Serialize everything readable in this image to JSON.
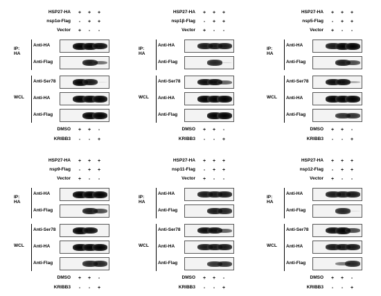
{
  "panels": [
    {
      "header": [
        {
          "label": "HSP27-HA",
          "marks": [
            "+",
            "+",
            "+"
          ]
        },
        {
          "label": "nsp1α-Flag",
          "marks": [
            "-",
            "+",
            "+"
          ]
        },
        {
          "label": "Vector",
          "marks": [
            "+",
            "-",
            "-"
          ]
        }
      ],
      "ip_group": "IP:\nHA",
      "wcl_group": "WCL",
      "rows": [
        {
          "label": "Anti-HA",
          "bands": [
            1,
            1,
            0.95
          ]
        },
        {
          "label": "Anti-Flag",
          "bands": [
            0,
            0.9,
            0.55
          ]
        },
        {
          "label": "Anti-Ser78",
          "bands": [
            1,
            0.9,
            0.1
          ]
        },
        {
          "label": "Anti-HA",
          "bands": [
            1,
            1,
            1
          ]
        },
        {
          "label": "Anti-Flag",
          "bands": [
            0,
            1,
            1
          ]
        }
      ],
      "footer": [
        {
          "label": "DMSO",
          "marks": [
            "+",
            "+",
            "-"
          ]
        },
        {
          "label": "KRIBB3",
          "marks": [
            "-",
            "-",
            "+"
          ]
        }
      ]
    },
    {
      "header": [
        {
          "label": "HSP27-HA",
          "marks": [
            "+",
            "+",
            "+"
          ]
        },
        {
          "label": "nsp1β-Flag",
          "marks": [
            "-",
            "+",
            "+"
          ]
        },
        {
          "label": "Vector",
          "marks": [
            "+",
            "-",
            "-"
          ]
        }
      ],
      "ip_group": "IP:\nHA",
      "wcl_group": "WCL",
      "rows": [
        {
          "label": "Anti-HA",
          "bands": [
            0.9,
            0.9,
            0.9
          ]
        },
        {
          "label": "Anti-Flag",
          "bands": [
            0,
            0.85,
            0.15
          ]
        },
        {
          "label": "Anti-Ser78",
          "bands": [
            0.95,
            0.95,
            0.6
          ]
        },
        {
          "label": "Anti-HA",
          "bands": [
            1,
            1,
            1
          ]
        },
        {
          "label": "Anti-Flag",
          "bands": [
            0,
            1,
            1
          ]
        }
      ],
      "footer": [
        {
          "label": "DMSO",
          "marks": [
            "+",
            "+",
            "-"
          ]
        },
        {
          "label": "KRIBB3",
          "marks": [
            "-",
            "-",
            "+"
          ]
        }
      ]
    },
    {
      "header": [
        {
          "label": "HSP27-HA",
          "marks": [
            "+",
            "+",
            "+"
          ]
        },
        {
          "label": "nsp5-Flag",
          "marks": [
            "-",
            "+",
            "+"
          ]
        },
        {
          "label": "Vector",
          "marks": [
            "+",
            "-",
            "-"
          ]
        }
      ],
      "ip_group": "IP:\nHA",
      "wcl_group": "WCL",
      "rows": [
        {
          "label": "Anti-HA",
          "bands": [
            0.9,
            1,
            1
          ]
        },
        {
          "label": "Anti-Flag",
          "bands": [
            0,
            0.9,
            0.7
          ]
        },
        {
          "label": "Anti-Ser78",
          "bands": [
            0.95,
            0.95,
            0.3
          ]
        },
        {
          "label": "Anti-HA",
          "bands": [
            1,
            1,
            1
          ]
        },
        {
          "label": "Anti-Flag",
          "bands": [
            0,
            0.8,
            0.8
          ]
        }
      ],
      "footer": [
        {
          "label": "DMSO",
          "marks": [
            "+",
            "+",
            "-"
          ]
        },
        {
          "label": "KRIBB3",
          "marks": [
            "-",
            "-",
            "+"
          ]
        }
      ]
    },
    {
      "header": [
        {
          "label": "HSP27-HA",
          "marks": [
            "+",
            "+",
            "+"
          ]
        },
        {
          "label": "nsp9-Flag",
          "marks": [
            "-",
            "+",
            "+"
          ]
        },
        {
          "label": "Vector",
          "marks": [
            "+",
            "-",
            "-"
          ]
        }
      ],
      "ip_group": "IP:\nHA",
      "wcl_group": "WCL",
      "rows": [
        {
          "label": "Anti-HA",
          "bands": [
            1,
            1,
            1
          ]
        },
        {
          "label": "Anti-Flag",
          "bands": [
            0,
            0.9,
            0.7
          ]
        },
        {
          "label": "Anti-Ser78",
          "bands": [
            1,
            0.95,
            0
          ]
        },
        {
          "label": "Anti-HA",
          "bands": [
            1,
            1,
            1
          ]
        },
        {
          "label": "Anti-Flag",
          "bands": [
            0,
            0.85,
            0.85
          ]
        }
      ],
      "footer": [
        {
          "label": "DMSO",
          "marks": [
            "+",
            "+",
            "-"
          ]
        },
        {
          "label": "KRIBB3",
          "marks": [
            "-",
            "-",
            "+"
          ]
        }
      ]
    },
    {
      "header": [
        {
          "label": "HSP27-HA",
          "marks": [
            "+",
            "+",
            "+"
          ]
        },
        {
          "label": "nsp11-Flag",
          "marks": [
            "-",
            "+",
            "+"
          ]
        },
        {
          "label": "Vector",
          "marks": [
            "+",
            "-",
            "-"
          ]
        }
      ],
      "ip_group": "IP:\nHA",
      "wcl_group": "WCL",
      "rows": [
        {
          "label": "Anti-HA",
          "bands": [
            0.9,
            0.9,
            0.9
          ]
        },
        {
          "label": "Anti-Flag",
          "bands": [
            0,
            0.9,
            0.85
          ]
        },
        {
          "label": "Anti-Ser78",
          "bands": [
            0.95,
            0.95,
            0.6
          ]
        },
        {
          "label": "Anti-HA",
          "bands": [
            0.9,
            0.9,
            0.9
          ]
        },
        {
          "label": "Anti-Flag",
          "bands": [
            0,
            0.8,
            0.8
          ]
        }
      ],
      "footer": [
        {
          "label": "DMSO",
          "marks": [
            "+",
            "+",
            "-"
          ]
        },
        {
          "label": "KRIBB3",
          "marks": [
            "-",
            "-",
            "+"
          ]
        }
      ]
    },
    {
      "header": [
        {
          "label": "HSP27-HA",
          "marks": [
            "+",
            "+",
            "+"
          ]
        },
        {
          "label": "nsp12-Flag",
          "marks": [
            "-",
            "+",
            "+"
          ]
        },
        {
          "label": "Vector",
          "marks": [
            "+",
            "-",
            "-"
          ]
        }
      ],
      "ip_group": "IP:\nHA",
      "wcl_group": "WCL",
      "rows": [
        {
          "label": "Anti-HA",
          "bands": [
            0.9,
            0.9,
            0.9
          ]
        },
        {
          "label": "Anti-Flag",
          "bands": [
            0,
            0.85,
            0.1
          ]
        },
        {
          "label": "Anti-Ser78",
          "bands": [
            0.95,
            1,
            0.7
          ]
        },
        {
          "label": "Anti-HA",
          "bands": [
            0.9,
            0.9,
            0.9
          ]
        },
        {
          "label": "Anti-Flag",
          "bands": [
            0,
            0.5,
            0.85
          ]
        }
      ],
      "footer": [
        {
          "label": "DMSO",
          "marks": [
            "+",
            "+",
            "-"
          ]
        },
        {
          "label": "KRIBB3",
          "marks": [
            "-",
            "-",
            "+"
          ]
        }
      ]
    }
  ]
}
